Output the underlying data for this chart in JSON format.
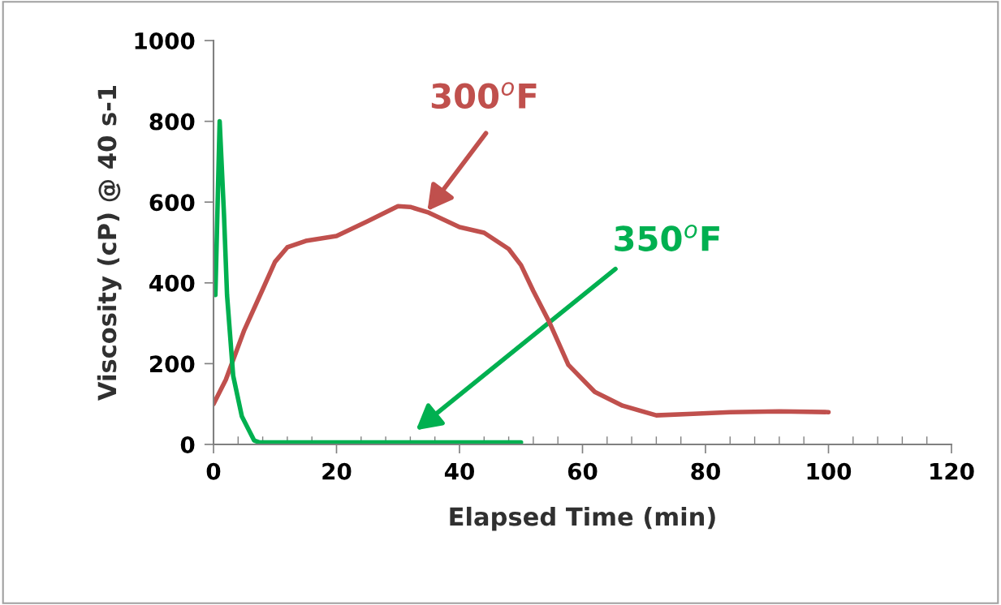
{
  "chart_data": {
    "type": "line",
    "xlabel": "Elapsed Time (min)",
    "ylabel": "Viscosity (cP) @ 40 s-1",
    "xlim": [
      0,
      120
    ],
    "xticks": [
      0,
      20,
      40,
      60,
      80,
      100,
      120
    ],
    "ylim": [
      0,
      1000
    ],
    "yticks": [
      0,
      200,
      400,
      600,
      800,
      1000
    ],
    "grid": false,
    "legend": false,
    "marker": "none",
    "line_style": "solid",
    "series": [
      {
        "color": "#c0504d",
        "x": [
          0,
          2,
          5,
          8,
          10,
          12,
          15,
          20,
          25,
          30,
          32,
          35,
          40,
          44,
          48,
          50,
          52,
          54.6,
          57.7,
          62,
          66.5,
          72,
          78,
          84,
          92,
          100
        ],
        "values": [
          100,
          160,
          283,
          384,
          452,
          488,
          504,
          516,
          552,
          590,
          588,
          574,
          538,
          524,
          484,
          444,
          380,
          303,
          197,
          130,
          96,
          72,
          76,
          80,
          82,
          80
        ]
      },
      {
        "color": "#00b050",
        "x": [
          0.3,
          1,
          1.7,
          2.2,
          3.2,
          4.6,
          6.6,
          7.5,
          20,
          35,
          50
        ],
        "values": [
          370,
          800,
          570,
          370,
          170,
          70,
          10,
          5,
          5,
          5,
          5
        ]
      }
    ],
    "annotations": [
      "300$^{o}$F",
      "350$^{o}$F"
    ]
  }
}
